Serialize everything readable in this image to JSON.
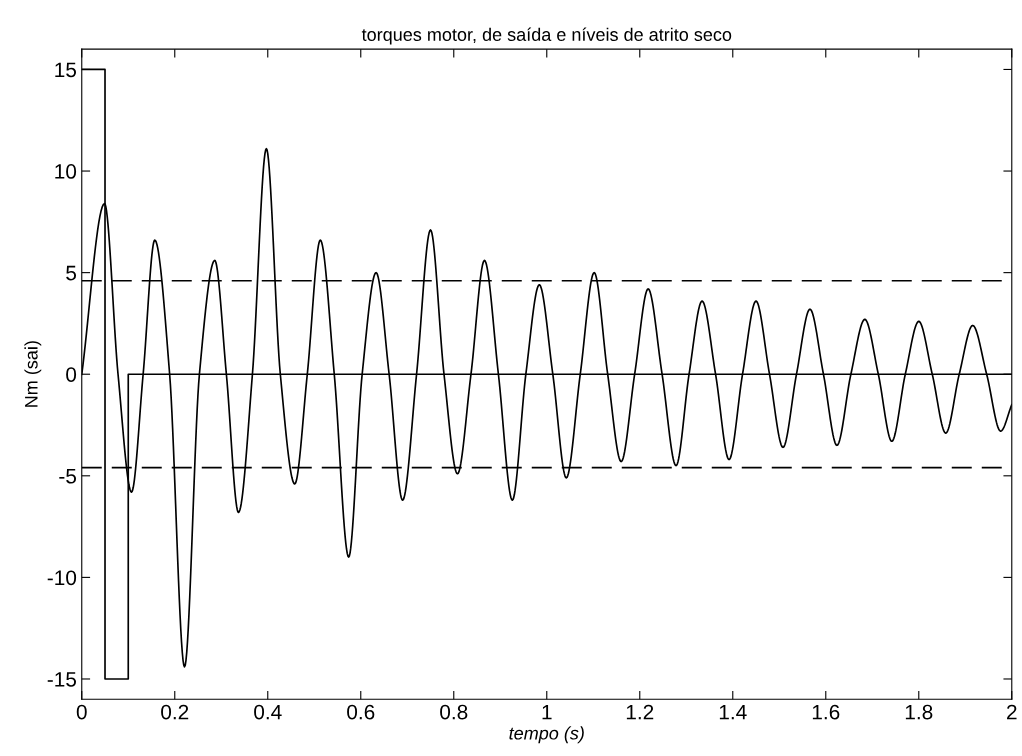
{
  "chart_data": {
    "type": "line",
    "title": "torques motor, de saída e níveis de atrito seco",
    "xlabel": "tempo (s)",
    "ylabel": "Nm (sai)",
    "xlim": [
      0,
      2
    ],
    "xticks": [
      0,
      0.2,
      0.4,
      0.6,
      0.8,
      1,
      1.2,
      1.4,
      1.6,
      1.8,
      2
    ],
    "ylim": [
      -16,
      16
    ],
    "yticks": [
      -15,
      -10,
      -5,
      0,
      5,
      10,
      15
    ],
    "grid": false,
    "legend": false,
    "series": [
      {
        "type": "step",
        "color": "#000000",
        "x": [
          0,
          0.05,
          0.1,
          2
        ],
        "values": [
          15,
          -15,
          0,
          0
        ]
      },
      {
        "color": "#000000",
        "x": [
          0,
          0.049,
          0.078,
          0.107,
          0.132,
          0.157,
          0.189,
          0.221,
          0.253,
          0.286,
          0.311,
          0.337,
          0.367,
          0.397,
          0.427,
          0.458,
          0.485,
          0.513,
          0.543,
          0.574,
          0.603,
          0.633,
          0.661,
          0.69,
          0.72,
          0.75,
          0.779,
          0.808,
          0.837,
          0.866,
          0.896,
          0.926,
          0.955,
          0.984,
          1.013,
          1.042,
          1.072,
          1.102,
          1.131,
          1.16,
          1.189,
          1.218,
          1.248,
          1.278,
          1.306,
          1.334,
          1.363,
          1.392,
          1.421,
          1.45,
          1.479,
          1.508,
          1.537,
          1.566,
          1.595,
          1.624,
          1.654,
          1.684,
          1.713,
          1.742,
          1.771,
          1.8,
          1.829,
          1.858,
          1.887,
          1.916,
          1.946,
          1.976,
          2
        ],
        "values": [
          0,
          8.4,
          0,
          -5.8,
          0,
          6.6,
          0,
          -14.4,
          0,
          5.6,
          0,
          -6.8,
          0,
          11.1,
          0,
          -5.4,
          0,
          6.6,
          0,
          -9.0,
          0,
          5.0,
          0,
          -6.2,
          0,
          7.1,
          0,
          -4.9,
          0,
          5.6,
          0,
          -6.2,
          0,
          4.4,
          0,
          -5.1,
          0,
          5.0,
          0,
          -4.3,
          0,
          4.2,
          0,
          -4.5,
          0,
          3.6,
          0,
          -4.2,
          0,
          3.6,
          0,
          -3.6,
          0,
          3.2,
          0,
          -3.5,
          0,
          2.7,
          0,
          -3.3,
          0,
          2.6,
          0,
          -2.9,
          0,
          2.4,
          0,
          -2.8,
          -1.5
        ]
      }
    ],
    "ref_lines": [
      {
        "axis": "y",
        "value": 4.6,
        "color": "#000000",
        "line_style": "dashed"
      },
      {
        "axis": "y",
        "value": -4.6,
        "color": "#000000",
        "line_style": "dashed"
      }
    ]
  }
}
